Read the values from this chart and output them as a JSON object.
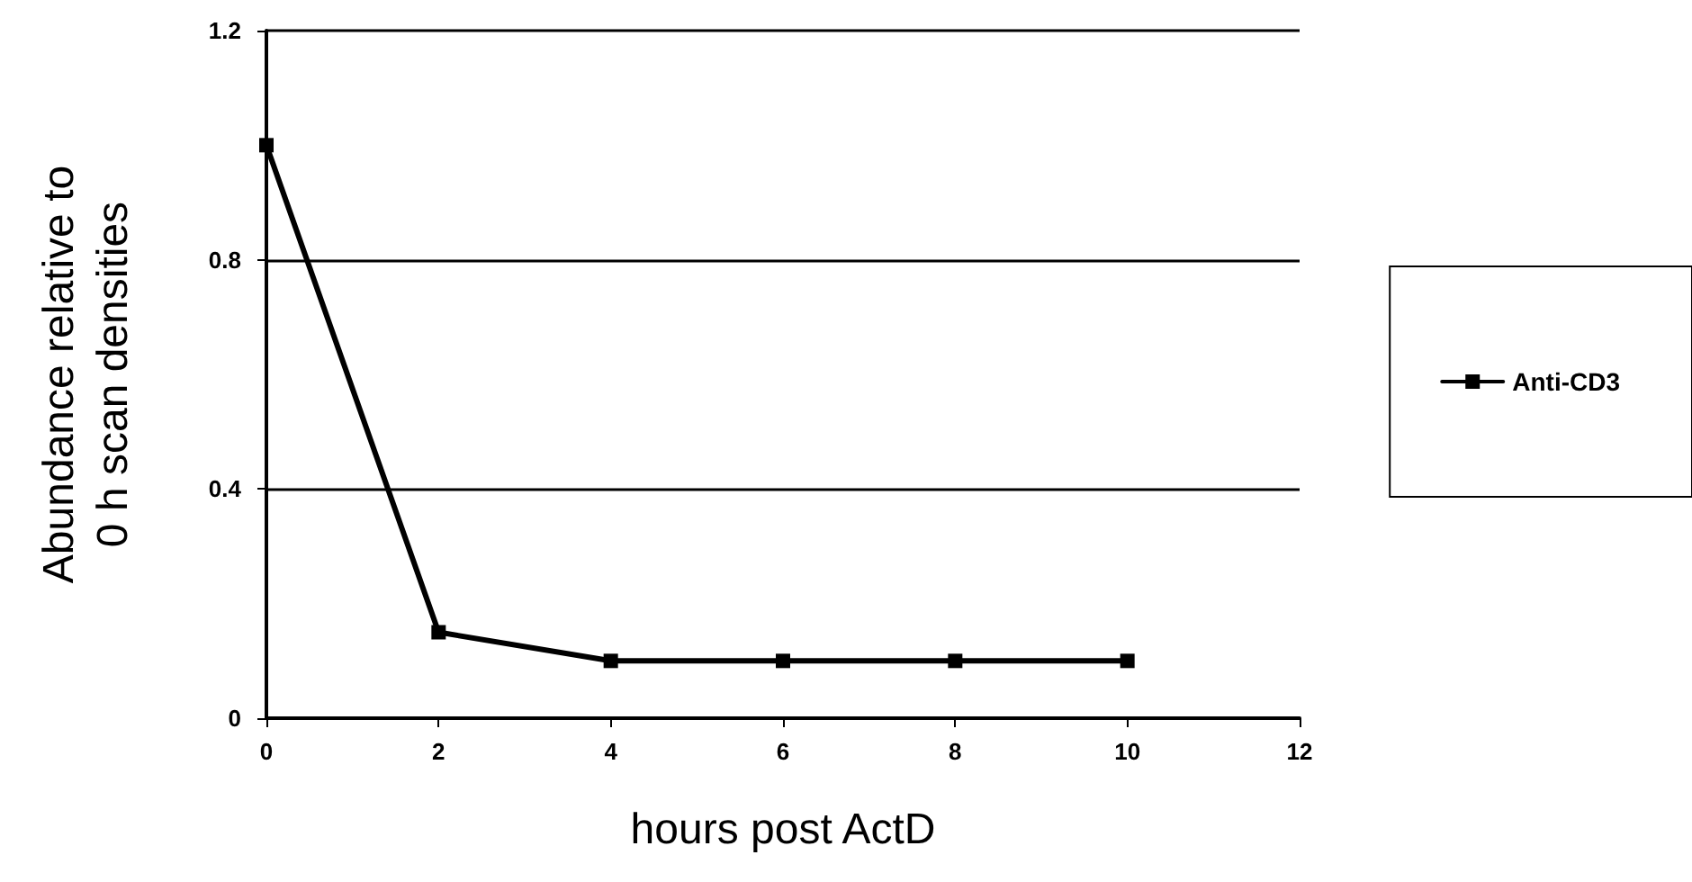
{
  "chart_data": {
    "type": "line",
    "xlabel": "hours post ActD",
    "ylabel": "Abundance relative to\n0 h scan densities",
    "x": [
      0,
      2,
      4,
      6,
      8,
      10
    ],
    "series": [
      {
        "name": "Anti-CD3",
        "color": "#000000",
        "values": [
          1.0,
          0.15,
          0.1,
          0.1,
          0.1,
          0.1
        ]
      }
    ],
    "xlim": [
      0,
      12
    ],
    "xticks": [
      0,
      2,
      4,
      6,
      8,
      10,
      12
    ],
    "ylim": [
      0,
      1.2
    ],
    "yticks": [
      0,
      0.4,
      0.8,
      1.2
    ],
    "grid": "y",
    "legend": "right",
    "marker": "square",
    "line_style": "solid"
  }
}
